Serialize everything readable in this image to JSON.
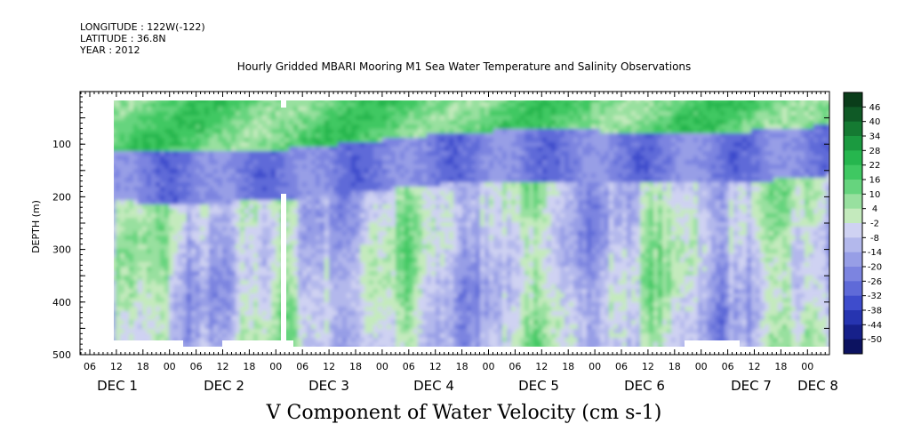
{
  "header": {
    "longitude": "LONGITUDE : 122W(-122)",
    "latitude": "LATITUDE : 36.8N",
    "year": "YEAR : 2012"
  },
  "chart_data": {
    "type": "heatmap",
    "title": "Hourly Gridded MBARI Mooring M1 Sea Water Temperature and Salinity Observations",
    "xlabel": "V Component of Water Velocity (cm s-1)",
    "ylabel": "DEPTH (m)",
    "ylim": [
      500,
      0
    ],
    "yticks": [
      100,
      200,
      300,
      400,
      500
    ],
    "hour_ticks": [
      "06",
      "12",
      "18",
      "00",
      "06",
      "12",
      "18",
      "00",
      "06",
      "12",
      "18",
      "00",
      "06",
      "12",
      "18",
      "00",
      "06",
      "12",
      "18",
      "00",
      "06",
      "12",
      "18",
      "00",
      "06",
      "12",
      "18",
      "00"
    ],
    "day_labels": [
      "DEC 1",
      "DEC 2",
      "DEC 3",
      "DEC 4",
      "DEC 5",
      "DEC 6",
      "DEC 7",
      "DEC 8"
    ],
    "colorbar": {
      "levels": [
        "46",
        "40",
        "34",
        "28",
        "22",
        "16",
        "10",
        "4",
        "-2",
        "-8",
        "-14",
        "-20",
        "-26",
        "-32",
        "-38",
        "-44",
        "-50"
      ],
      "colors": [
        "#0a3d1a",
        "#0f5a26",
        "#157a32",
        "#1b9a40",
        "#26b64e",
        "#3fc862",
        "#66d47e",
        "#98e09f",
        "#c4eabd",
        "#cfd2f2",
        "#b3b8ec",
        "#979ee6",
        "#7c84e0",
        "#5f6ad8",
        "#3e4ccc",
        "#2634b0",
        "#16208a",
        "#0c1260"
      ]
    },
    "notes": "Top ~100 m predominantly positive (green, ~10 to 28); a band of strong negative flow (blue, ~-20 to -32) near 100-180 m deepening slightly around DEC 1-4 and shoaling by DEC 7-8; mid/deep water mixed between ~-14 and +10."
  }
}
